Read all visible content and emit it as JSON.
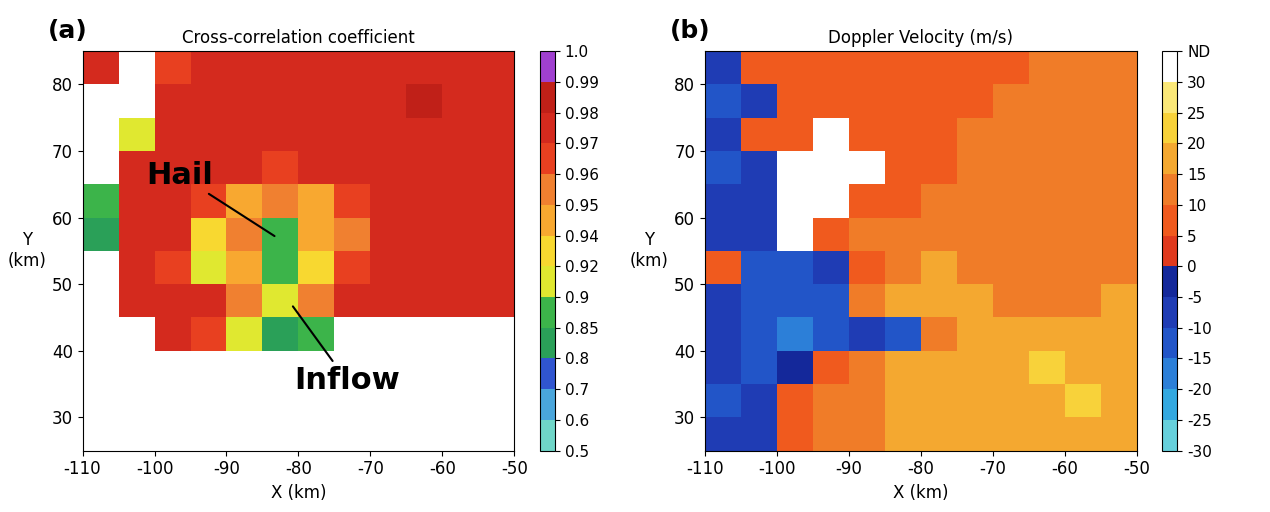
{
  "chart_data": [
    {
      "type": "heatmap",
      "panel_label": "(a)",
      "title": "Cross-correlation coefficient",
      "x_label": "X (km)",
      "y_label": "Y\n(km)",
      "xlim": [
        -110,
        -50
      ],
      "ylim": [
        25,
        85
      ],
      "xticks": [
        -110,
        -100,
        -90,
        -80,
        -70,
        -60,
        -50
      ],
      "yticks": [
        30,
        40,
        50,
        60,
        70,
        80
      ],
      "x_edges": [
        -110,
        -105,
        -100,
        -95,
        -90,
        -85,
        -80,
        -75,
        -70,
        -65,
        -60,
        -55,
        -50
      ],
      "y_edges": [
        25,
        30,
        35,
        40,
        45,
        50,
        55,
        60,
        65,
        70,
        75,
        80,
        85
      ],
      "cells": [
        [
          null,
          null,
          null,
          null,
          null,
          null,
          null,
          null,
          null,
          null,
          null,
          null
        ],
        [
          null,
          null,
          null,
          null,
          null,
          null,
          null,
          null,
          null,
          null,
          null,
          null
        ],
        [
          null,
          null,
          null,
          null,
          null,
          null,
          null,
          null,
          null,
          null,
          null,
          null
        ],
        [
          null,
          null,
          0.975,
          0.965,
          0.91,
          0.825,
          0.875,
          null,
          null,
          null,
          null,
          null
        ],
        [
          null,
          0.975,
          0.975,
          0.975,
          0.955,
          0.91,
          0.955,
          0.975,
          0.975,
          0.975,
          0.975,
          0.975
        ],
        [
          null,
          0.975,
          0.965,
          0.91,
          0.945,
          0.875,
          0.93,
          0.965,
          0.975,
          0.975,
          0.975,
          0.975
        ],
        [
          0.825,
          0.975,
          0.975,
          0.93,
          0.955,
          0.875,
          0.945,
          0.955,
          0.975,
          0.975,
          0.975,
          0.975
        ],
        [
          0.875,
          0.975,
          0.975,
          0.965,
          0.945,
          0.955,
          0.945,
          0.965,
          0.975,
          0.975,
          0.975,
          0.975
        ],
        [
          null,
          0.975,
          0.975,
          0.975,
          0.975,
          0.965,
          0.975,
          0.975,
          0.975,
          0.975,
          0.975,
          0.975
        ],
        [
          null,
          0.91,
          0.975,
          0.975,
          0.975,
          0.975,
          0.975,
          0.975,
          0.975,
          0.975,
          0.975,
          0.975
        ],
        [
          null,
          null,
          0.975,
          0.975,
          0.975,
          0.975,
          0.975,
          0.975,
          0.975,
          0.985,
          0.975,
          0.975
        ],
        [
          0.975,
          null,
          0.965,
          0.975,
          0.975,
          0.975,
          0.975,
          0.975,
          0.975,
          0.975,
          0.975,
          0.975
        ]
      ],
      "colorbar_bounds": [
        0.5,
        0.6,
        0.7,
        0.8,
        0.85,
        0.9,
        0.92,
        0.94,
        0.95,
        0.96,
        0.97,
        0.98,
        0.99,
        1.0
      ],
      "colorbar_ticks": [
        0.5,
        0.6,
        0.7,
        0.8,
        0.85,
        0.9,
        0.92,
        0.94,
        0.95,
        0.96,
        0.97,
        0.98,
        0.99,
        1.0
      ],
      "colors": [
        "#6fd6c8",
        "#4aa6dc",
        "#3055d0",
        "#2aa058",
        "#3cb44a",
        "#e0e830",
        "#f8d830",
        "#f8a830",
        "#f08030",
        "#e84020",
        "#d42a1e",
        "#c02018",
        "#a040d0"
      ],
      "annotations": [
        {
          "text": "Hail",
          "x": -83,
          "y": 57
        },
        {
          "text": "Inflow",
          "x": -81,
          "y": 47
        }
      ]
    },
    {
      "type": "heatmap",
      "panel_label": "(b)",
      "title": "Doppler Velocity (m/s)",
      "x_label": "X (km)",
      "y_label": "Y\n(km)",
      "xlim": [
        -110,
        -50
      ],
      "ylim": [
        25,
        85
      ],
      "xticks": [
        -110,
        -100,
        -90,
        -80,
        -70,
        -60,
        -50
      ],
      "yticks": [
        30,
        40,
        50,
        60,
        70,
        80
      ],
      "x_edges": [
        -110,
        -105,
        -100,
        -95,
        -90,
        -85,
        -80,
        -75,
        -70,
        -65,
        -60,
        -55,
        -50
      ],
      "y_edges": [
        25,
        30,
        35,
        40,
        45,
        50,
        55,
        60,
        65,
        70,
        75,
        80,
        85
      ],
      "cells": [
        [
          -7,
          -7,
          7,
          12,
          12,
          17,
          17,
          17,
          17,
          17,
          17,
          17
        ],
        [
          -12,
          -7,
          7,
          12,
          12,
          17,
          17,
          17,
          17,
          17,
          22,
          17
        ],
        [
          -7,
          -12,
          -2,
          7,
          12,
          17,
          17,
          17,
          17,
          22,
          17,
          17
        ],
        [
          -7,
          -12,
          -17,
          -12,
          -7,
          -12,
          12,
          17,
          17,
          17,
          17,
          17
        ],
        [
          -7,
          -12,
          -12,
          -12,
          12,
          17,
          17,
          17,
          12,
          12,
          12,
          17
        ],
        [
          7,
          -12,
          -12,
          -7,
          7,
          12,
          17,
          12,
          12,
          12,
          12,
          12
        ],
        [
          -7,
          -7,
          null,
          7,
          12,
          12,
          12,
          12,
          12,
          12,
          12,
          12
        ],
        [
          -7,
          -7,
          null,
          null,
          7,
          7,
          12,
          12,
          12,
          12,
          12,
          12
        ],
        [
          -12,
          -7,
          null,
          null,
          null,
          7,
          7,
          12,
          12,
          12,
          12,
          12
        ],
        [
          -7,
          7,
          7,
          null,
          7,
          7,
          7,
          12,
          12,
          12,
          12,
          12
        ],
        [
          -12,
          -7,
          7,
          7,
          7,
          7,
          7,
          7,
          12,
          12,
          12,
          12
        ],
        [
          -7,
          7,
          7,
          7,
          7,
          7,
          7,
          7,
          7,
          12,
          12,
          12
        ]
      ],
      "colorbar_bounds": [
        -30,
        -25,
        -20,
        -15,
        -10,
        -5,
        0,
        5,
        10,
        15,
        20,
        25,
        30,
        35
      ],
      "colorbar_ticks": [
        -30,
        -25,
        -20,
        -15,
        -10,
        -5,
        0,
        5,
        10,
        15,
        20,
        25,
        30,
        {
          "value": 35,
          "label": "ND"
        }
      ],
      "colors": [
        "#66d0dc",
        "#33a8e0",
        "#2c7fd8",
        "#2255c8",
        "#1f3cb4",
        "#14289a",
        "#e03a1e",
        "#f05a1e",
        "#f07c28",
        "#f4a830",
        "#f8d23a",
        "#fbe878",
        "#ffffff"
      ],
      "annotations": []
    }
  ]
}
